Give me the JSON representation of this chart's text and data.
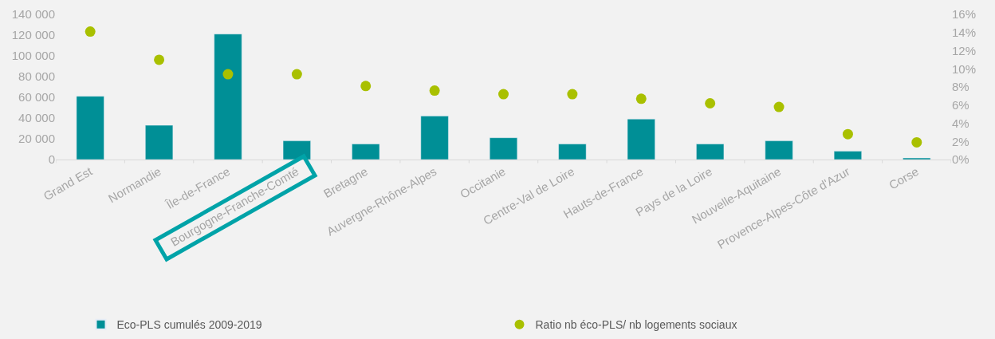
{
  "chart_data": {
    "type": "bar",
    "categories": [
      "Grand Est",
      "Normandie",
      "Île-de-France",
      "Bourgogne-Franche-Comté",
      "Bretagne",
      "Auvergne-Rhône-Alpes",
      "Occitanie",
      "Centre-Val de Loire",
      "Hauts-de-France",
      "Pays de la Loire",
      "Nouvelle-Aquitaine",
      "Provence-Alpes-Côte d'Azur",
      "Corse"
    ],
    "series": [
      {
        "name": "Eco-PLS cumulés 2009-2019",
        "color": "#008f96",
        "values": [
          61000,
          33000,
          121000,
          18000,
          15000,
          42000,
          21000,
          15000,
          39000,
          15000,
          18000,
          8000,
          1500
        ]
      },
      {
        "name": "Ratio nb éco-PLS/ nb logements sociaux",
        "type": "scatter",
        "axis": "y2",
        "color": "#a9c000",
        "marker": "circle",
        "values": [
          14.1,
          11.0,
          9.4,
          9.4,
          8.1,
          7.6,
          7.2,
          7.2,
          6.7,
          6.2,
          5.8,
          2.8,
          1.9
        ]
      }
    ],
    "ylim": [
      0,
      140000
    ],
    "yticks": [
      0,
      {
        "value": 20000,
        "label": "20 000"
      },
      {
        "value": 40000,
        "label": "40 000"
      },
      {
        "value": 60000,
        "label": "60 000"
      },
      {
        "value": 80000,
        "label": "80 000"
      },
      {
        "value": 100000,
        "label": "100 000"
      },
      {
        "value": 120000,
        "label": "120 000"
      },
      {
        "value": 140000,
        "label": "140 000"
      }
    ],
    "y2lim": [
      0,
      16
    ],
    "y2ticks": [
      {
        "value": 0,
        "label": "0%"
      },
      {
        "value": 2,
        "label": "2%"
      },
      {
        "value": 4,
        "label": "4%"
      },
      {
        "value": 6,
        "label": "6%"
      },
      {
        "value": 8,
        "label": "8%"
      },
      {
        "value": 10,
        "label": "10%"
      },
      {
        "value": 12,
        "label": "12%"
      },
      {
        "value": 14,
        "label": "14%"
      },
      {
        "value": 16,
        "label": "16%"
      }
    ],
    "grid": false,
    "legend": "bottom"
  }
}
